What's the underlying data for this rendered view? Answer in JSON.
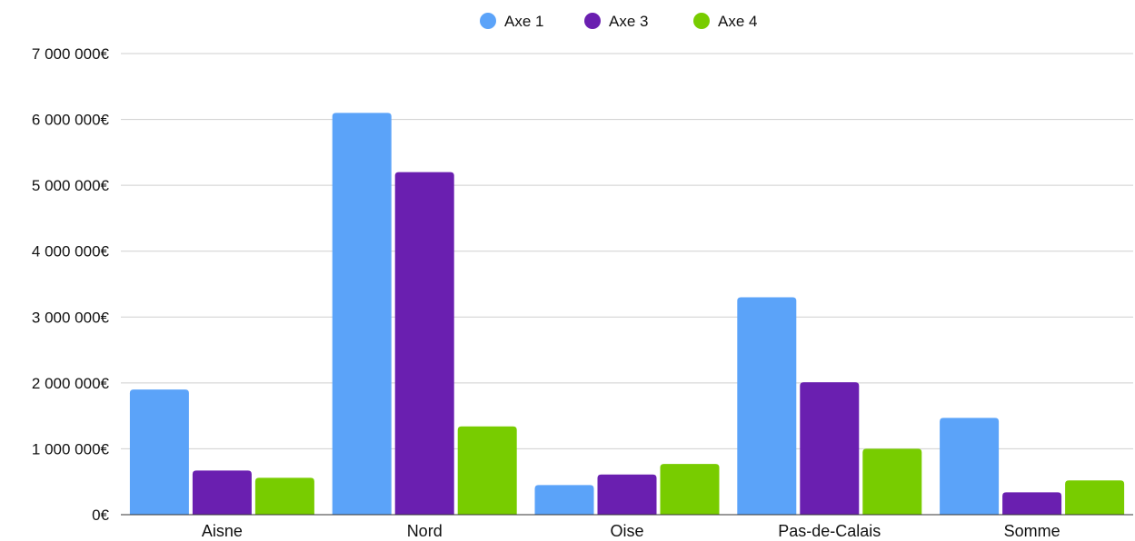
{
  "chart_data": {
    "type": "bar",
    "title": "",
    "xlabel": "",
    "ylabel": "",
    "categories": [
      "Aisne",
      "Nord",
      "Oise",
      "Pas-de-Calais",
      "Somme"
    ],
    "series": [
      {
        "name": "Axe 1",
        "color": "#5ba3f9",
        "values": [
          1900000,
          6100000,
          450000,
          3300000,
          1470000
        ]
      },
      {
        "name": "Axe 3",
        "color": "#6a1fb0",
        "values": [
          670000,
          5200000,
          610000,
          2010000,
          340000
        ]
      },
      {
        "name": "Axe 4",
        "color": "#78cc00",
        "values": [
          560000,
          1340000,
          770000,
          1000000,
          520000
        ]
      }
    ],
    "ylim": [
      0,
      7000000
    ],
    "yticks": [
      0,
      1000000,
      2000000,
      3000000,
      4000000,
      5000000,
      6000000,
      7000000
    ],
    "ytick_labels": [
      "0€",
      "1 000 000€",
      "2 000 000€",
      "3 000 000€",
      "4 000 000€",
      "5 000 000€",
      "6 000 000€",
      "7 000 000€"
    ],
    "grid": true,
    "legend_position": "top-center"
  }
}
